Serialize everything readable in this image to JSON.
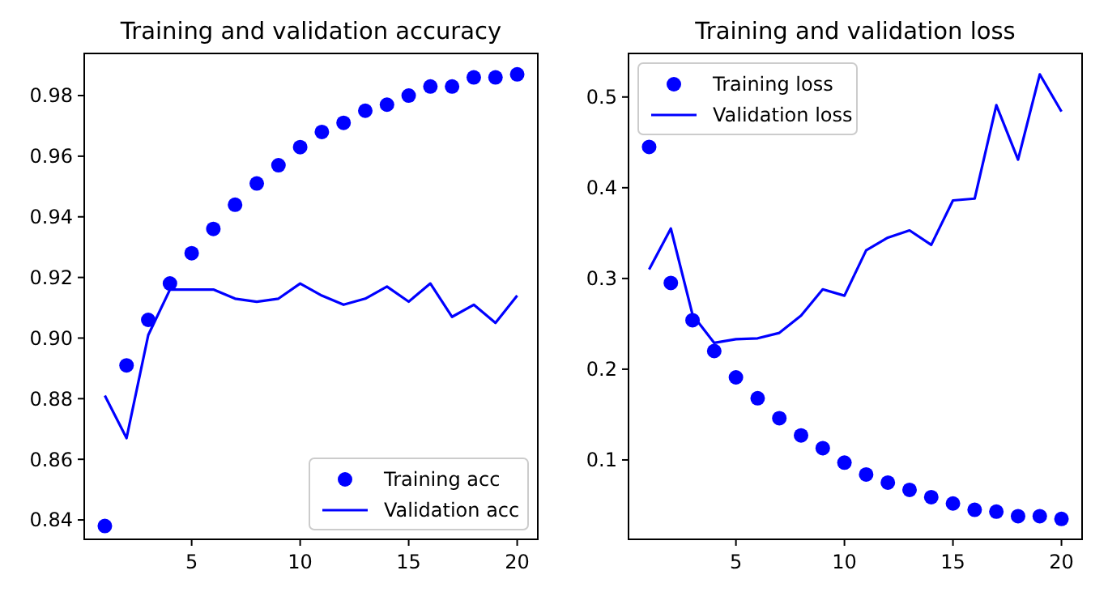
{
  "chart_data": [
    {
      "type": "line",
      "title": "Training and validation accuracy",
      "x": [
        1,
        2,
        3,
        4,
        5,
        6,
        7,
        8,
        9,
        10,
        11,
        12,
        13,
        14,
        15,
        16,
        17,
        18,
        19,
        20
      ],
      "xlim": [
        0.05,
        20.95
      ],
      "xticks": [
        5,
        10,
        15,
        20
      ],
      "ylim": [
        0.8336,
        0.9939
      ],
      "yticks": [
        0.84,
        0.86,
        0.88,
        {
          "value": 0.9,
          "label": "0.90"
        },
        0.92,
        0.94,
        0.96,
        0.98
      ],
      "legend": "bottom right",
      "series": [
        {
          "name": "Training acc",
          "type": "scatter",
          "marker": "circle",
          "color": "#0000ff",
          "values": [
            0.838,
            0.891,
            0.906,
            0.918,
            0.928,
            0.936,
            0.944,
            0.951,
            0.957,
            0.963,
            0.968,
            0.971,
            0.975,
            0.977,
            0.98,
            0.983,
            0.983,
            0.986,
            0.986,
            0.987
          ]
        },
        {
          "name": "Validation acc",
          "line_style": "solid",
          "color": "#0000ff",
          "values": [
            0.881,
            0.867,
            0.901,
            0.916,
            0.916,
            0.916,
            0.913,
            0.912,
            0.913,
            0.918,
            0.914,
            0.911,
            0.913,
            0.917,
            0.912,
            0.918,
            0.907,
            0.911,
            0.905,
            0.914
          ]
        }
      ]
    },
    {
      "type": "line",
      "title": "Training and validation loss",
      "x": [
        1,
        2,
        3,
        4,
        5,
        6,
        7,
        8,
        9,
        10,
        11,
        12,
        13,
        14,
        15,
        16,
        17,
        18,
        19,
        20
      ],
      "xlim": [
        0.05,
        20.95
      ],
      "xticks": [
        5,
        10,
        15,
        20
      ],
      "ylim": [
        0.0125,
        0.548
      ],
      "yticks": [
        0.1,
        0.2,
        0.3,
        0.4,
        0.5
      ],
      "legend": "top left",
      "series": [
        {
          "name": "Training loss",
          "type": "scatter",
          "marker": "circle",
          "color": "#0000ff",
          "values": [
            0.445,
            0.295,
            0.254,
            0.22,
            0.191,
            0.168,
            0.146,
            0.127,
            0.113,
            0.097,
            0.084,
            0.075,
            0.067,
            0.059,
            0.052,
            0.045,
            0.043,
            0.038,
            0.038,
            0.035
          ]
        },
        {
          "name": "Validation loss",
          "line_style": "solid",
          "color": "#0000ff",
          "values": [
            0.31,
            0.355,
            0.26,
            0.229,
            0.233,
            0.234,
            0.24,
            0.259,
            0.288,
            0.281,
            0.331,
            0.345,
            0.353,
            0.337,
            0.386,
            0.388,
            0.491,
            0.431,
            0.525,
            0.484
          ]
        }
      ]
    }
  ]
}
